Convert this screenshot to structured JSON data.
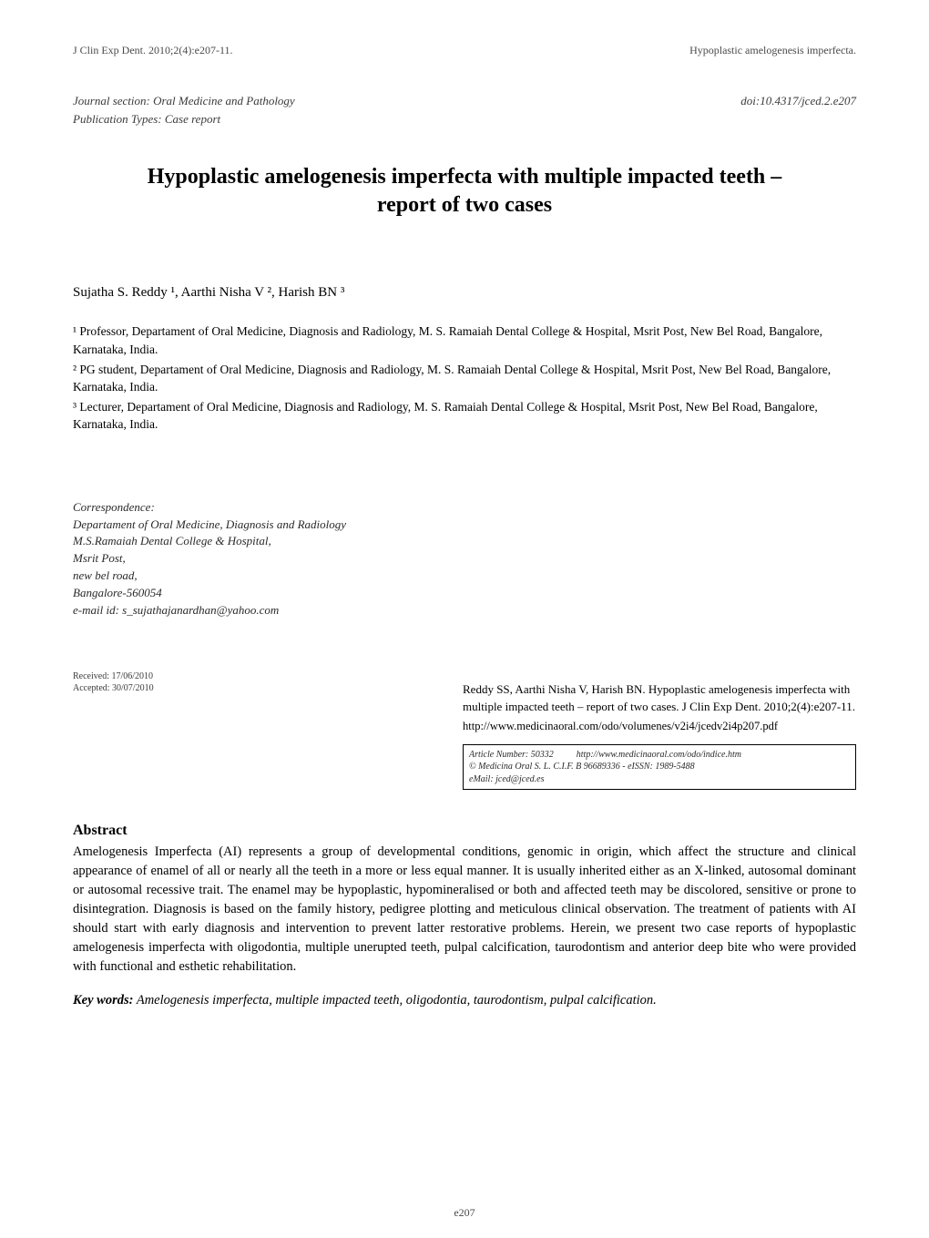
{
  "header": {
    "left": "J Clin Exp Dent. 2010;2(4):e207-11.",
    "right": "Hypoplastic amelogenesis imperfecta."
  },
  "meta": {
    "journal_section": "Journal section: Oral Medicine and Pathology",
    "pub_types": "Publication Types: Case report",
    "doi": "doi:10.4317/jced.2.e207"
  },
  "title": {
    "line1": "Hypoplastic amelogenesis imperfecta with multiple impacted teeth –",
    "line2": "report of two cases"
  },
  "authors": "Sujatha S. Reddy ¹, Aarthi Nisha V ², Harish BN ³",
  "affiliations": [
    "¹ Professor, Departament of Oral Medicine, Diagnosis and Radiology, M. S. Ramaiah Dental College & Hospital, Msrit Post, New Bel Road, Bangalore, Karnataka, India.",
    "² PG student, Departament of Oral Medicine, Diagnosis and Radiology, M. S. Ramaiah Dental College & Hospital, Msrit Post, New Bel Road, Bangalore, Karnataka, India.",
    "³ Lecturer, Departament of Oral Medicine, Diagnosis and Radiology, M. S. Ramaiah Dental College & Hospital, Msrit Post, New Bel Road, Bangalore, Karnataka, India."
  ],
  "correspondence": {
    "heading": "Correspondence:",
    "lines": [
      "Departament of Oral Medicine, Diagnosis and Radiology",
      "M.S.Ramaiah Dental College & Hospital,",
      "Msrit Post,",
      "new bel road,",
      "Bangalore-560054",
      "e-mail id: s_sujathajanardhan@yahoo.com"
    ]
  },
  "dates": {
    "received": "Received: 17/06/2010",
    "accepted": "Accepted: 30/07/2010"
  },
  "citation": {
    "text": "Reddy SS, Aarthi Nisha V, Harish BN. Hypoplastic amelogenesis imperfecta with multiple impacted teeth – report of two cases. J Clin Exp Dent. 2010;2(4):e207-11.",
    "link": "http://www.medicinaoral.com/odo/volumenes/v2i4/jcedv2i4p207.pdf"
  },
  "infobox": {
    "line1": "Article Number: 50332          http://www.medicinaoral.com/odo/indice.htm",
    "line2": "© Medicina Oral S. L. C.I.F. B 96689336 - eISSN: 1989-5488",
    "line3": "eMail:  jced@jced.es"
  },
  "abstract": {
    "heading": "Abstract",
    "body": "Amelogenesis Imperfecta (AI) represents a group of developmental conditions, genomic in origin, which affect the structure and clinical appearance of enamel of all or nearly all the teeth in a more or less equal manner. It is usually inherited either as an X-linked, autosomal dominant or autosomal recessive trait. The enamel may be hypoplastic, hypomineralised or both and affected teeth may be discolored, sensitive or prone to disintegration. Diagnosis is based on the family history, pedigree plotting and meticulous clinical observation. The treatment of patients with AI should start with early diagnosis and intervention to prevent latter restorative problems. Herein, we present two case reports of hypoplastic amelogenesis imperfecta with oligodontia, multiple unerupted teeth, pulpal calcification, taurodontism and anterior deep bite who were provided with functional and esthetic rehabilitation."
  },
  "keywords": {
    "label": "Key words:",
    "text": " Amelogenesis imperfecta, multiple impacted teeth, oligodontia, taurodontism, pulpal calcification."
  },
  "page_number": "e207",
  "style": {
    "page_bg": "#ffffff",
    "text_color": "#000000",
    "muted_color": "#4a4a4a",
    "box_border": "#000000",
    "title_fontsize": 24,
    "body_fontsize": 14.5,
    "small_fontsize": 13,
    "tiny_fontsize": 10,
    "font_family": "Times New Roman"
  }
}
